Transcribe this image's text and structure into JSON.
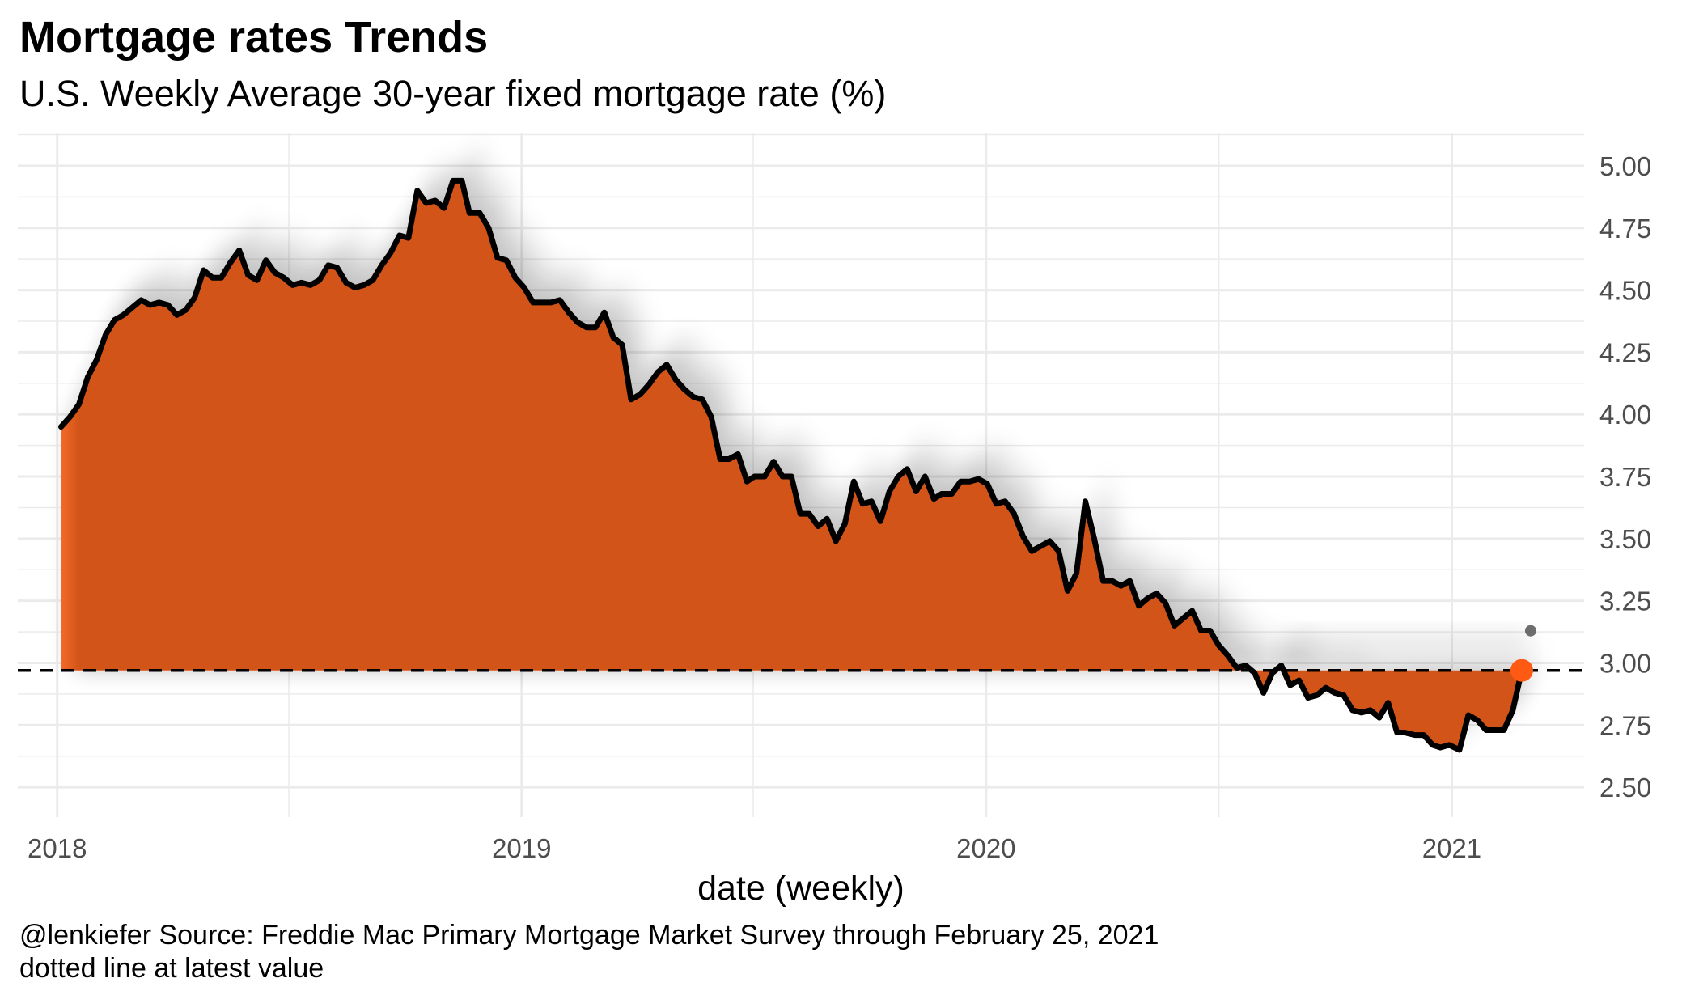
{
  "title": "Mortgage rates Trends",
  "subtitle": "U.S. Weekly Average 30-year fixed mortgage rate (%)",
  "caption": {
    "line1": "@lenkiefer Source: Freddie Mac Primary Mortgage Market Survey through February 25, 2021",
    "line2": "dotted line at latest value"
  },
  "colors": {
    "area_fill": "#d35418",
    "area_fill_edge": "#f26a2a",
    "line": "#000000",
    "latest_point": "#ff5a14",
    "grid": "#ebebeb",
    "shadow": "#000000"
  },
  "chart_data": {
    "type": "area",
    "xlabel": "date (weekly)",
    "ylabel": "",
    "x_ticks": [
      {
        "label": "2018",
        "date": "2018-01-01"
      },
      {
        "label": "2019",
        "date": "2019-01-01"
      },
      {
        "label": "2020",
        "date": "2020-01-01"
      },
      {
        "label": "2021",
        "date": "2021-01-01"
      }
    ],
    "y_ticks": [
      "2.50",
      "2.75",
      "3.00",
      "3.25",
      "3.50",
      "3.75",
      "4.00",
      "4.25",
      "4.50",
      "4.75",
      "5.00"
    ],
    "xlim": [
      "2017-12-01",
      "2021-04-15"
    ],
    "ylim": [
      2.38,
      5.13
    ],
    "reference_line": {
      "value": 2.97,
      "style": "dashed"
    },
    "latest_point": {
      "date": "2021-02-25",
      "value": 2.97
    },
    "series": [
      {
        "x": [
          "2018-01-04",
          "2018-01-11",
          "2018-01-18",
          "2018-01-25",
          "2018-02-01",
          "2018-02-08",
          "2018-02-15",
          "2018-02-22",
          "2018-03-01",
          "2018-03-08",
          "2018-03-15",
          "2018-03-22",
          "2018-03-29",
          "2018-04-05",
          "2018-04-12",
          "2018-04-19",
          "2018-04-26",
          "2018-05-03",
          "2018-05-10",
          "2018-05-17",
          "2018-05-24",
          "2018-05-31",
          "2018-06-07",
          "2018-06-14",
          "2018-06-21",
          "2018-06-28",
          "2018-07-05",
          "2018-07-12",
          "2018-07-19",
          "2018-07-26",
          "2018-08-02",
          "2018-08-09",
          "2018-08-16",
          "2018-08-23",
          "2018-08-30",
          "2018-09-06",
          "2018-09-13",
          "2018-09-20",
          "2018-09-27",
          "2018-10-04",
          "2018-10-11",
          "2018-10-18",
          "2018-10-25",
          "2018-11-01",
          "2018-11-08",
          "2018-11-15",
          "2018-11-21",
          "2018-11-29",
          "2018-12-06",
          "2018-12-13",
          "2018-12-20",
          "2018-12-27",
          "2019-01-03",
          "2019-01-10",
          "2019-01-17",
          "2019-01-24",
          "2019-01-31",
          "2019-02-07",
          "2019-02-14",
          "2019-02-21",
          "2019-02-28",
          "2019-03-07",
          "2019-03-14",
          "2019-03-21",
          "2019-03-28",
          "2019-04-04",
          "2019-04-11",
          "2019-04-18",
          "2019-04-25",
          "2019-05-02",
          "2019-05-09",
          "2019-05-16",
          "2019-05-23",
          "2019-05-30",
          "2019-06-06",
          "2019-06-13",
          "2019-06-20",
          "2019-06-27",
          "2019-07-03",
          "2019-07-11",
          "2019-07-18",
          "2019-07-25",
          "2019-08-01",
          "2019-08-08",
          "2019-08-15",
          "2019-08-22",
          "2019-08-29",
          "2019-09-05",
          "2019-09-12",
          "2019-09-19",
          "2019-09-26",
          "2019-10-03",
          "2019-10-10",
          "2019-10-17",
          "2019-10-24",
          "2019-10-31",
          "2019-11-07",
          "2019-11-14",
          "2019-11-21",
          "2019-11-27",
          "2019-12-05",
          "2019-12-12",
          "2019-12-19",
          "2019-12-26",
          "2020-01-02",
          "2020-01-09",
          "2020-01-16",
          "2020-01-23",
          "2020-01-30",
          "2020-02-06",
          "2020-02-13",
          "2020-02-20",
          "2020-02-27",
          "2020-03-05",
          "2020-03-12",
          "2020-03-19",
          "2020-03-26",
          "2020-04-02",
          "2020-04-09",
          "2020-04-16",
          "2020-04-23",
          "2020-04-30",
          "2020-05-07",
          "2020-05-14",
          "2020-05-21",
          "2020-05-28",
          "2020-06-04",
          "2020-06-11",
          "2020-06-18",
          "2020-06-25",
          "2020-07-02",
          "2020-07-09",
          "2020-07-16",
          "2020-07-23",
          "2020-07-30",
          "2020-08-06",
          "2020-08-13",
          "2020-08-20",
          "2020-08-27",
          "2020-09-03",
          "2020-09-10",
          "2020-09-17",
          "2020-09-24",
          "2020-10-01",
          "2020-10-08",
          "2020-10-15",
          "2020-10-22",
          "2020-10-29",
          "2020-11-05",
          "2020-11-12",
          "2020-11-19",
          "2020-11-25",
          "2020-12-03",
          "2020-12-10",
          "2020-12-17",
          "2020-12-23",
          "2020-12-30",
          "2021-01-07",
          "2021-01-14",
          "2021-01-21",
          "2021-01-28",
          "2021-02-04",
          "2021-02-11",
          "2021-02-18",
          "2021-02-25"
        ],
        "values": [
          3.95,
          3.99,
          4.04,
          4.15,
          4.22,
          4.32,
          4.38,
          4.4,
          4.43,
          4.46,
          4.44,
          4.45,
          4.44,
          4.4,
          4.42,
          4.47,
          4.58,
          4.55,
          4.55,
          4.61,
          4.66,
          4.56,
          4.54,
          4.62,
          4.57,
          4.55,
          4.52,
          4.53,
          4.52,
          4.54,
          4.6,
          4.59,
          4.53,
          4.51,
          4.52,
          4.54,
          4.6,
          4.65,
          4.72,
          4.71,
          4.9,
          4.85,
          4.86,
          4.83,
          4.94,
          4.94,
          4.81,
          4.81,
          4.75,
          4.63,
          4.62,
          4.55,
          4.51,
          4.45,
          4.45,
          4.45,
          4.46,
          4.41,
          4.37,
          4.35,
          4.35,
          4.41,
          4.31,
          4.28,
          4.06,
          4.08,
          4.12,
          4.17,
          4.2,
          4.14,
          4.1,
          4.07,
          4.06,
          3.99,
          3.82,
          3.82,
          3.84,
          3.73,
          3.75,
          3.75,
          3.81,
          3.75,
          3.75,
          3.6,
          3.6,
          3.55,
          3.58,
          3.49,
          3.56,
          3.73,
          3.64,
          3.65,
          3.57,
          3.69,
          3.75,
          3.78,
          3.69,
          3.75,
          3.66,
          3.68,
          3.68,
          3.73,
          3.73,
          3.74,
          3.72,
          3.64,
          3.65,
          3.6,
          3.51,
          3.45,
          3.47,
          3.49,
          3.45,
          3.29,
          3.36,
          3.65,
          3.5,
          3.33,
          3.33,
          3.31,
          3.33,
          3.23,
          3.26,
          3.28,
          3.24,
          3.15,
          3.18,
          3.21,
          3.13,
          3.13,
          3.07,
          3.03,
          2.98,
          2.99,
          2.96,
          2.88,
          2.96,
          2.99,
          2.91,
          2.93,
          2.86,
          2.87,
          2.9,
          2.88,
          2.87,
          2.81,
          2.8,
          2.81,
          2.78,
          2.84,
          2.72,
          2.72,
          2.71,
          2.71,
          2.67,
          2.66,
          2.67,
          2.65,
          2.79,
          2.77,
          2.73,
          2.73,
          2.73,
          2.81,
          2.97
        ]
      }
    ]
  }
}
